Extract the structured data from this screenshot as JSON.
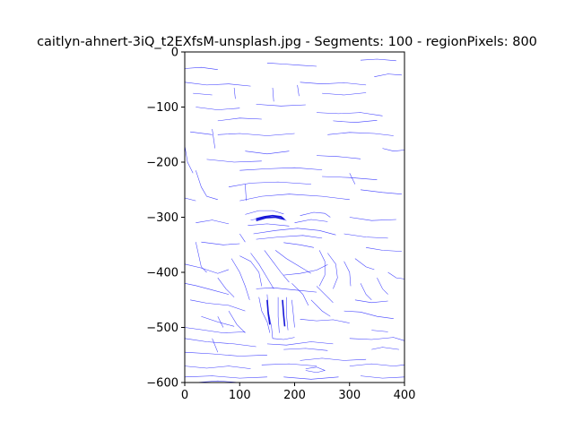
{
  "chart_data": {
    "type": "line",
    "title": "caitlyn-ahnert-3iQ_t2EXfsM-unsplash.jpg - Segments: 100 - regionPixels: 800",
    "xlabel": "",
    "ylabel": "",
    "xlim": [
      0,
      400
    ],
    "ylim": [
      -600,
      0
    ],
    "x_ticks": [
      0,
      100,
      200,
      300,
      400
    ],
    "y_ticks": [
      0,
      -100,
      -200,
      -300,
      -400,
      -500,
      -600
    ],
    "x_tick_labels": [
      "0",
      "100",
      "200",
      "300",
      "400"
    ],
    "y_tick_labels": [
      "0",
      "−100",
      "−200",
      "−300",
      "−400",
      "−500",
      "−600"
    ],
    "grid": false,
    "series_color": "#0000ff",
    "contours": [
      [
        [
          0,
          -30
        ],
        [
          30,
          -28
        ],
        [
          60,
          -32
        ]
      ],
      [
        [
          150,
          -20
        ],
        [
          180,
          -22
        ],
        [
          210,
          -24
        ],
        [
          240,
          -26
        ]
      ],
      [
        [
          320,
          -15
        ],
        [
          350,
          -13
        ],
        [
          385,
          -16
        ]
      ],
      [
        [
          0,
          -55
        ],
        [
          40,
          -60
        ],
        [
          80,
          -58
        ],
        [
          120,
          -62
        ]
      ],
      [
        [
          210,
          -55
        ],
        [
          250,
          -58
        ],
        [
          290,
          -56
        ],
        [
          330,
          -60
        ]
      ],
      [
        [
          345,
          -45
        ],
        [
          370,
          -40
        ],
        [
          395,
          -42
        ]
      ],
      [
        [
          90,
          -65
        ],
        [
          92,
          -85
        ]
      ],
      [
        [
          160,
          -65
        ],
        [
          162,
          -90
        ]
      ],
      [
        [
          20,
          -100
        ],
        [
          60,
          -105
        ],
        [
          100,
          -102
        ]
      ],
      [
        [
          130,
          -95
        ],
        [
          175,
          -98
        ],
        [
          220,
          -96
        ]
      ],
      [
        [
          240,
          -110
        ],
        [
          280,
          -112
        ],
        [
          320,
          -110
        ],
        [
          360,
          -116
        ]
      ],
      [
        [
          60,
          -125
        ],
        [
          100,
          -120
        ],
        [
          140,
          -122
        ]
      ],
      [
        [
          10,
          -145
        ],
        [
          50,
          -150
        ]
      ],
      [
        [
          60,
          -150
        ],
        [
          100,
          -148
        ],
        [
          150,
          -152
        ],
        [
          200,
          -148
        ]
      ],
      [
        [
          260,
          -150
        ],
        [
          300,
          -146
        ],
        [
          345,
          -148
        ],
        [
          380,
          -152
        ]
      ],
      [
        [
          50,
          -140
        ],
        [
          55,
          -175
        ]
      ],
      [
        [
          110,
          -180
        ],
        [
          150,
          -185
        ],
        [
          190,
          -180
        ]
      ],
      [
        [
          40,
          -195
        ],
        [
          90,
          -200
        ],
        [
          140,
          -198
        ]
      ],
      [
        [
          240,
          -188
        ],
        [
          280,
          -190
        ],
        [
          320,
          -194
        ]
      ],
      [
        [
          100,
          -215
        ],
        [
          150,
          -212
        ],
        [
          200,
          -210
        ],
        [
          250,
          -214
        ]
      ],
      [
        [
          250,
          -226
        ],
        [
          300,
          -228
        ],
        [
          350,
          -232
        ]
      ],
      [
        [
          80,
          -245
        ],
        [
          120,
          -238
        ],
        [
          170,
          -236
        ],
        [
          230,
          -240
        ]
      ],
      [
        [
          300,
          -220
        ],
        [
          310,
          -240
        ]
      ],
      [
        [
          20,
          -215
        ],
        [
          30,
          -245
        ],
        [
          40,
          -262
        ],
        [
          60,
          -268
        ]
      ],
      [
        [
          0,
          -170
        ],
        [
          5,
          -200
        ],
        [
          15,
          -220
        ]
      ],
      [
        [
          100,
          -270
        ],
        [
          140,
          -262
        ],
        [
          190,
          -258
        ],
        [
          250,
          -262
        ],
        [
          300,
          -268
        ]
      ],
      [
        [
          320,
          -250
        ],
        [
          360,
          -255
        ],
        [
          395,
          -258
        ]
      ],
      [
        [
          110,
          -295
        ],
        [
          135,
          -288
        ],
        [
          160,
          -288
        ],
        [
          180,
          -294
        ]
      ],
      [
        [
          210,
          -297
        ],
        [
          235,
          -291
        ],
        [
          255,
          -293
        ],
        [
          265,
          -300
        ]
      ],
      [
        [
          120,
          -305
        ],
        [
          150,
          -300
        ],
        [
          170,
          -299
        ],
        [
          185,
          -306
        ]
      ],
      [
        [
          115,
          -315
        ],
        [
          150,
          -312
        ],
        [
          190,
          -316
        ]
      ],
      [
        [
          200,
          -310
        ],
        [
          230,
          -304
        ],
        [
          260,
          -308
        ]
      ],
      [
        [
          125,
          -330
        ],
        [
          165,
          -324
        ],
        [
          205,
          -320
        ],
        [
          245,
          -324
        ],
        [
          275,
          -332
        ]
      ],
      [
        [
          130,
          -340
        ],
        [
          170,
          -336
        ],
        [
          215,
          -333
        ],
        [
          250,
          -338
        ]
      ],
      [
        [
          300,
          -300
        ],
        [
          340,
          -306
        ],
        [
          385,
          -304
        ]
      ],
      [
        [
          290,
          -330
        ],
        [
          330,
          -336
        ],
        [
          370,
          -338
        ]
      ],
      [
        [
          20,
          -310
        ],
        [
          50,
          -305
        ],
        [
          80,
          -312
        ]
      ],
      [
        [
          30,
          -345
        ],
        [
          70,
          -350
        ],
        [
          100,
          -348
        ]
      ],
      [
        [
          180,
          -346
        ],
        [
          210,
          -350
        ],
        [
          235,
          -355
        ]
      ],
      [
        [
          20,
          -345
        ],
        [
          30,
          -390
        ],
        [
          40,
          -400
        ]
      ],
      [
        [
          145,
          -360
        ],
        [
          160,
          -380
        ],
        [
          175,
          -400
        ],
        [
          190,
          -418
        ]
      ],
      [
        [
          120,
          -365
        ],
        [
          135,
          -385
        ],
        [
          150,
          -410
        ],
        [
          162,
          -430
        ]
      ],
      [
        [
          165,
          -360
        ],
        [
          185,
          -375
        ],
        [
          210,
          -390
        ],
        [
          230,
          -402
        ]
      ],
      [
        [
          180,
          -405
        ],
        [
          210,
          -402
        ],
        [
          240,
          -396
        ],
        [
          260,
          -386
        ]
      ],
      [
        [
          100,
          -370
        ],
        [
          120,
          -380
        ],
        [
          135,
          -400
        ],
        [
          140,
          -425
        ]
      ],
      [
        [
          85,
          -375
        ],
        [
          100,
          -400
        ],
        [
          110,
          -425
        ],
        [
          118,
          -450
        ]
      ],
      [
        [
          245,
          -360
        ],
        [
          255,
          -380
        ],
        [
          255,
          -405
        ],
        [
          245,
          -425
        ]
      ],
      [
        [
          260,
          -365
        ],
        [
          275,
          -385
        ],
        [
          278,
          -410
        ],
        [
          270,
          -430
        ]
      ],
      [
        [
          240,
          -425
        ],
        [
          255,
          -440
        ],
        [
          270,
          -455
        ]
      ],
      [
        [
          290,
          -380
        ],
        [
          300,
          -400
        ],
        [
          302,
          -425
        ]
      ],
      [
        [
          310,
          -375
        ],
        [
          330,
          -390
        ],
        [
          345,
          -395
        ]
      ],
      [
        [
          0,
          -385
        ],
        [
          30,
          -392
        ],
        [
          60,
          -402
        ],
        [
          80,
          -395
        ]
      ],
      [
        [
          0,
          -420
        ],
        [
          20,
          -424
        ],
        [
          50,
          -432
        ],
        [
          80,
          -440
        ]
      ],
      [
        [
          10,
          -450
        ],
        [
          40,
          -456
        ],
        [
          80,
          -460
        ],
        [
          110,
          -470
        ]
      ],
      [
        [
          130,
          -430
        ],
        [
          160,
          -428
        ],
        [
          200,
          -432
        ],
        [
          240,
          -436
        ]
      ],
      [
        [
          135,
          -445
        ],
        [
          140,
          -470
        ],
        [
          150,
          -490
        ],
        [
          155,
          -510
        ]
      ],
      [
        [
          150,
          -440
        ],
        [
          152,
          -470
        ],
        [
          158,
          -500
        ],
        [
          160,
          -520
        ]
      ],
      [
        [
          170,
          -445
        ],
        [
          170,
          -480
        ],
        [
          172,
          -510
        ]
      ],
      [
        [
          185,
          -445
        ],
        [
          185,
          -475
        ],
        [
          188,
          -505
        ]
      ],
      [
        [
          195,
          -450
        ],
        [
          198,
          -480
        ],
        [
          200,
          -500
        ]
      ],
      [
        [
          160,
          -520
        ],
        [
          180,
          -522
        ],
        [
          200,
          -518
        ]
      ],
      [
        [
          150,
          -530
        ],
        [
          185,
          -532
        ],
        [
          230,
          -526
        ],
        [
          270,
          -530
        ]
      ],
      [
        [
          80,
          -470
        ],
        [
          95,
          -495
        ],
        [
          110,
          -510
        ]
      ],
      [
        [
          30,
          -480
        ],
        [
          60,
          -490
        ],
        [
          90,
          -498
        ]
      ],
      [
        [
          0,
          -500
        ],
        [
          30,
          -504
        ],
        [
          70,
          -510
        ],
        [
          110,
          -508
        ]
      ],
      [
        [
          210,
          -485
        ],
        [
          240,
          -488
        ],
        [
          270,
          -486
        ],
        [
          300,
          -492
        ]
      ],
      [
        [
          290,
          -470
        ],
        [
          320,
          -472
        ],
        [
          350,
          -480
        ],
        [
          380,
          -484
        ]
      ],
      [
        [
          310,
          -450
        ],
        [
          340,
          -455
        ],
        [
          370,
          -452
        ]
      ],
      [
        [
          0,
          -520
        ],
        [
          40,
          -526
        ],
        [
          90,
          -530
        ],
        [
          130,
          -535
        ]
      ],
      [
        [
          180,
          -540
        ],
        [
          220,
          -538
        ],
        [
          260,
          -542
        ]
      ],
      [
        [
          300,
          -520
        ],
        [
          340,
          -522
        ],
        [
          380,
          -518
        ],
        [
          400,
          -524
        ]
      ],
      [
        [
          0,
          -545
        ],
        [
          50,
          -548
        ],
        [
          100,
          -552
        ],
        [
          150,
          -550
        ]
      ],
      [
        [
          210,
          -560
        ],
        [
          250,
          -556
        ],
        [
          290,
          -560
        ],
        [
          330,
          -558
        ]
      ],
      [
        [
          340,
          -540
        ],
        [
          360,
          -536
        ],
        [
          390,
          -540
        ]
      ],
      [
        [
          0,
          -570
        ],
        [
          40,
          -574
        ],
        [
          80,
          -570
        ],
        [
          120,
          -575
        ]
      ],
      [
        [
          140,
          -568
        ],
        [
          190,
          -566
        ],
        [
          240,
          -570
        ]
      ],
      [
        [
          220,
          -575
        ],
        [
          240,
          -572
        ],
        [
          255,
          -578
        ],
        [
          240,
          -582
        ],
        [
          220,
          -578
        ]
      ],
      [
        [
          300,
          -570
        ],
        [
          340,
          -566
        ],
        [
          380,
          -570
        ],
        [
          400,
          -568
        ]
      ],
      [
        [
          0,
          -590
        ],
        [
          50,
          -588
        ],
        [
          100,
          -592
        ],
        [
          150,
          -590
        ]
      ],
      [
        [
          180,
          -590
        ],
        [
          230,
          -594
        ],
        [
          280,
          -590
        ]
      ],
      [
        [
          320,
          -588
        ],
        [
          360,
          -592
        ],
        [
          400,
          -590
        ]
      ],
      [
        [
          50,
          -520
        ],
        [
          60,
          -545
        ]
      ],
      [
        [
          350,
          -410
        ],
        [
          360,
          -430
        ],
        [
          370,
          -440
        ]
      ],
      [
        [
          60,
          -410
        ],
        [
          75,
          -430
        ],
        [
          90,
          -445
        ]
      ],
      [
        [
          320,
          -420
        ],
        [
          330,
          -440
        ],
        [
          340,
          -450
        ]
      ],
      [
        [
          110,
          -240
        ],
        [
          112,
          -270
        ]
      ],
      [
        [
          205,
          -60
        ],
        [
          208,
          -80
        ]
      ],
      [
        [
          250,
          -75
        ],
        [
          290,
          -78
        ],
        [
          330,
          -74
        ]
      ],
      [
        [
          15,
          -75
        ],
        [
          50,
          -78
        ]
      ],
      [
        [
          270,
          -125
        ],
        [
          310,
          -128
        ],
        [
          350,
          -124
        ]
      ],
      [
        [
          360,
          -175
        ],
        [
          380,
          -180
        ],
        [
          400,
          -178
        ]
      ],
      [
        [
          0,
          -265
        ],
        [
          20,
          -270
        ]
      ],
      [
        [
          330,
          -355
        ],
        [
          360,
          -360
        ],
        [
          395,
          -362
        ]
      ],
      [
        [
          370,
          -400
        ],
        [
          385,
          -410
        ],
        [
          400,
          -412
        ]
      ],
      [
        [
          230,
          -450
        ],
        [
          250,
          -470
        ],
        [
          265,
          -480
        ]
      ],
      [
        [
          195,
          -420
        ],
        [
          215,
          -440
        ],
        [
          225,
          -460
        ]
      ],
      [
        [
          100,
          -330
        ],
        [
          110,
          -345
        ]
      ],
      [
        [
          60,
          -480
        ],
        [
          70,
          -500
        ]
      ],
      [
        [
          340,
          -505
        ],
        [
          370,
          -508
        ]
      ],
      [
        [
          20,
          -600
        ],
        [
          60,
          -597
        ],
        [
          100,
          -600
        ]
      ]
    ],
    "highlight_contours": [
      [
        [
          130,
          -303
        ],
        [
          145,
          -299
        ],
        [
          160,
          -297
        ],
        [
          175,
          -299
        ],
        [
          180,
          -303
        ]
      ],
      [
        [
          130,
          -306
        ],
        [
          148,
          -301
        ],
        [
          165,
          -300
        ],
        [
          182,
          -304
        ]
      ],
      [
        [
          150,
          -450
        ],
        [
          152,
          -475
        ],
        [
          155,
          -495
        ]
      ],
      [
        [
          178,
          -450
        ],
        [
          180,
          -478
        ],
        [
          182,
          -498
        ]
      ]
    ]
  }
}
